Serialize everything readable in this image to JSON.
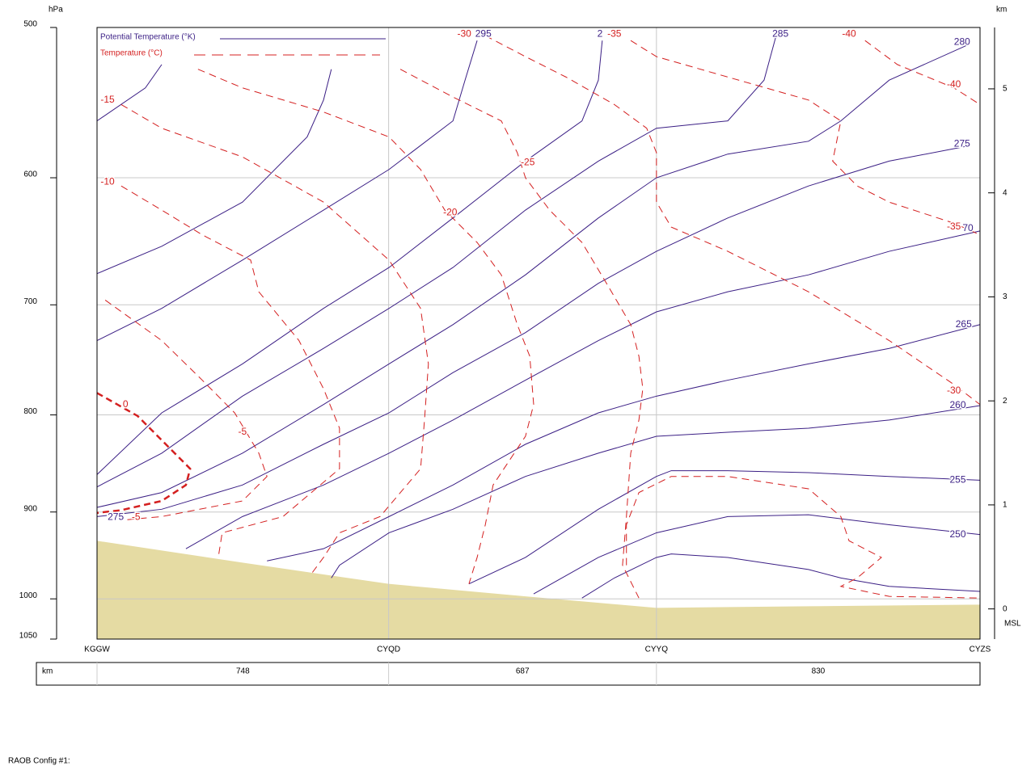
{
  "chart_data": {
    "type": "cross-section",
    "y_label": "hPa",
    "y2_label": "km",
    "y2_note": "MSL",
    "log_scale": true,
    "grid": true,
    "xlim": [
      0,
      2265
    ],
    "ylim": [
      1050,
      500
    ],
    "yticks": [
      500,
      600,
      700,
      800,
      900,
      1000,
      1050
    ],
    "y2lim": [
      -0.29,
      5.59
    ],
    "y2ticks": [
      0,
      1,
      2,
      3,
      4,
      5
    ],
    "stations": [
      "KGGW",
      "CYQD",
      "CYYQ",
      "CYZS"
    ],
    "segments": {
      "label": "km",
      "values": [
        748,
        687,
        830
      ]
    },
    "terrain": {
      "color": "#e5dba3",
      "x": [
        0,
        373,
        748,
        1099,
        1435,
        1825,
        2265
      ],
      "values": [
        932,
        957,
        982,
        997,
        1011,
        1009,
        1007
      ]
    },
    "series": [
      {
        "name": "Potential Temperature (°K)",
        "color": "#3b1f85",
        "style": "solid",
        "contours": [
          {
            "x": [
              0,
              124,
              166
            ],
            "values": [
              560,
              538,
              523
            ]
          },
          {
            "x": [
              0,
              166,
              373,
              539,
              581,
              601
            ],
            "values": [
              674,
              652,
              618,
              571,
              546,
              526
            ]
          },
          {
            "x": [
              0,
              166,
              373,
              581,
              749,
              913,
              944,
              975
            ],
            "values": [
              731,
              703,
              663,
              624,
              594,
              560,
              533,
              508
            ]
          },
          {
            "x": [
              0,
              166,
              373,
              581,
              749,
              913,
              1099,
              1244,
              1286,
              1296
            ],
            "values": [
              860,
              798,
              752,
              703,
              669,
              630,
              588,
              560,
              533,
              508
            ]
          },
          {
            "x": [
              0,
              166,
              373,
              581,
              749,
              913,
              1099,
              1286,
              1435,
              1618,
              1711,
              1742
            ],
            "values": [
              873,
              838,
              782,
              738,
              703,
              669,
              624,
              588,
              565,
              560,
              533,
              505
            ]
          },
          {
            "x": [
              0,
              166,
              373,
              581,
              749,
              913,
              1099,
              1286,
              1435,
              1618,
              1825,
              1908,
              2032,
              2240
            ],
            "values": [
              895,
              879,
              838,
              790,
              752,
              717,
              675,
              630,
              600,
              583,
              574,
              560,
              533,
              510
            ]
          },
          {
            "x": [
              0,
              166,
              373,
              581,
              749,
              913,
              1099,
              1286,
              1435,
              1618,
              1825,
              2032,
              2240
            ],
            "values": [
              905,
              897,
              871,
              829,
              798,
              760,
              724,
              682,
              656,
              630,
              606,
              588,
              577
            ]
          },
          {
            "x": [
              228,
              373,
              581,
              749,
              913,
              1099,
              1286,
              1435,
              1618,
              1825,
              2032,
              2265
            ],
            "values": [
              941,
              905,
              871,
              838,
              805,
              767,
              731,
              706,
              689,
              675,
              656,
              640
            ]
          },
          {
            "x": [
              436,
              581,
              749,
              913,
              1099,
              1286,
              1435,
              1618,
              1825,
              2032,
              2265
            ],
            "values": [
              955,
              941,
              905,
              871,
              829,
              798,
              782,
              767,
              752,
              738,
              717
            ]
          },
          {
            "x": [
              601,
              622,
              749,
              913,
              1099,
              1286,
              1435,
              1618,
              1825,
              2032,
              2265
            ],
            "values": [
              975,
              960,
              923,
              897,
              862,
              838,
              821,
              817,
              813,
              805,
              791
            ]
          },
          {
            "x": [
              954,
              1099,
              1286,
              1435,
              1473,
              1618,
              1825,
              2032,
              2265
            ],
            "values": [
              982,
              951,
              897,
              862,
              856,
              856,
              858,
              862,
              866
            ]
          },
          {
            "x": [
              1120,
              1286,
              1435,
              1618,
              1825,
              2032,
              2265
            ],
            "values": [
              994,
              951,
              923,
              905,
              903,
              914,
              925
            ]
          },
          {
            "x": [
              1244,
              1327,
              1435,
              1473,
              1618,
              1825,
              1908,
              2032,
              2265
            ],
            "values": [
              999,
              975,
              951,
              947,
              951,
              965,
              975,
              985,
              991
            ]
          }
        ],
        "labels": [
          {
            "value": 295,
            "x": 991,
            "y": 504
          },
          {
            "value": 2,
            "x": 1290,
            "y": 504
          },
          {
            "value": 285,
            "x": 1753,
            "y": 504
          },
          {
            "value": 280,
            "x": 2219,
            "y": 509
          },
          {
            "value": 275,
            "x": 2219,
            "y": 576
          },
          {
            "value": 70,
            "x": 2234,
            "y": 638
          },
          {
            "value": 265,
            "x": 2223,
            "y": 717
          },
          {
            "value": 260,
            "x": 2208,
            "y": 791
          },
          {
            "value": 255,
            "x": 2208,
            "y": 866
          },
          {
            "value": 250,
            "x": 2208,
            "y": 925
          },
          {
            "value": 275,
            "x": 48,
            "y": 906
          }
        ]
      },
      {
        "name": "Temperature (°C)",
        "color": "#d42020",
        "style": "dashed",
        "contours": [
          {
            "x": [
              62,
              166,
              373,
              581,
              749,
              830,
              850,
              840,
              830,
              726,
              622,
              581,
              550
            ],
            "values": [
              549,
              565,
              585,
              618,
              663,
              703,
              752,
              805,
              854,
              905,
              923,
              951,
              970
            ]
          },
          {
            "x": [
              62,
              166,
              270,
              394,
              415,
              518,
              581,
              622,
              622,
              477,
              321,
              311
            ],
            "values": [
              606,
              624,
              643,
              663,
              689,
              731,
              775,
              813,
              854,
              905,
              923,
              951
            ]
          },
          {
            "x": [
              21,
              166,
              270,
              353,
              415,
              436,
              373,
              166,
              62
            ],
            "values": [
              696,
              731,
              767,
              798,
              838,
              862,
              888,
              905,
              909
            ]
          },
          {
            "x": [
              0,
              104,
              239,
              228,
              166,
              62,
              0
            ],
            "values": [
              779,
              801,
              854,
              871,
              888,
              898,
              901
            ],
            "bold": true
          },
          {
            "x": [
              259,
              373,
              581,
              749,
              830,
              892,
              975,
              1037,
              1078,
              1110,
              1120,
              1099,
              1016,
              996,
              975,
              954
            ],
            "values": [
              526,
              538,
              554,
              571,
              594,
              624,
              649,
              675,
              717,
              745,
              790,
              821,
              871,
              914,
              951,
              982
            ]
          },
          {
            "x": [
              778,
              913,
              1037,
              1078,
              1099,
              1161,
              1244,
              1307,
              1369,
              1390,
              1400,
              1390,
              1369,
              1358,
              1348,
              1390
            ],
            "values": [
              526,
              544,
              560,
              582,
              600,
              624,
              649,
              682,
              717,
              745,
              775,
              805,
              838,
              905,
              960,
              999
            ]
          },
          {
            "x": [
              996,
              1099,
              1203,
              1327,
              1410,
              1435,
              1435,
              1473,
              1618,
              1825,
              2032,
              2198,
              2265
            ],
            "values": [
              505,
              518,
              531,
              549,
              565,
              582,
              618,
              637,
              656,
              689,
              731,
              771,
              790
            ]
          },
          {
            "x": [
              1369,
              1435,
              1618,
              1825,
              1908,
              1887,
              1950,
              2032,
              2198,
              2265
            ],
            "values": [
              508,
              518,
              531,
              546,
              560,
              588,
              606,
              618,
              634,
              643
            ]
          },
          {
            "x": [
              1970,
              2053,
              2198,
              2265
            ],
            "values": [
              508,
              523,
              538,
              549
            ]
          },
          {
            "x": [
              1358,
              1358,
              1390,
              1473,
              1618,
              1825,
              1908,
              1929,
              2012,
              1950,
              1908,
              2032,
              2265
            ],
            "values": [
              960,
              914,
              879,
              862,
              862,
              875,
              905,
              932,
              951,
              975,
              985,
              997,
              999
            ]
          }
        ],
        "labels": [
          {
            "value": -30,
            "x": 942,
            "y": 504
          },
          {
            "value": -35,
            "x": 1327,
            "y": 504
          },
          {
            "value": -40,
            "x": 1929,
            "y": 504
          },
          {
            "value": -40,
            "x": 2198,
            "y": 536
          },
          {
            "value": -15,
            "x": 27,
            "y": 546
          },
          {
            "value": -25,
            "x": 1105,
            "y": 589
          },
          {
            "value": -10,
            "x": 27,
            "y": 603
          },
          {
            "value": -20,
            "x": 906,
            "y": 626
          },
          {
            "value": -35,
            "x": 2198,
            "y": 637
          },
          {
            "value": -30,
            "x": 2198,
            "y": 777
          },
          {
            "value": 0,
            "x": 73,
            "y": 790
          },
          {
            "value": -5,
            "x": 373,
            "y": 817
          },
          {
            "value": -5,
            "x": 100,
            "y": 906
          }
        ]
      }
    ]
  },
  "footer": "RAOB Config #1:"
}
